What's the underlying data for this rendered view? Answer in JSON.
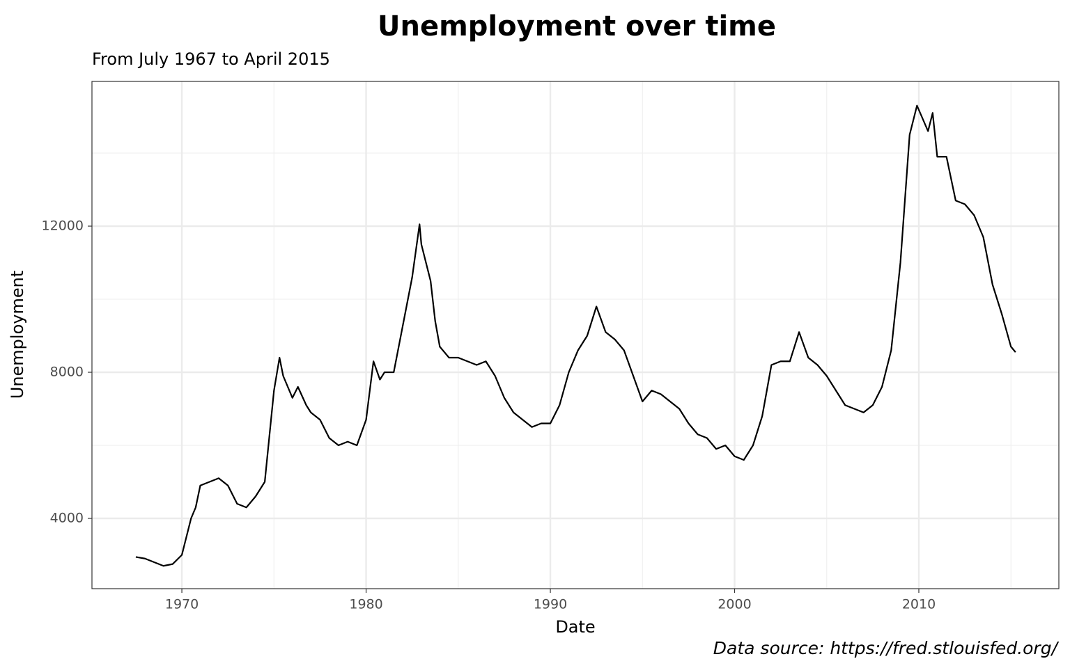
{
  "chart_data": {
    "type": "line",
    "title": "Unemployment over time",
    "subtitle": "From July 1967 to April 2015",
    "caption": "Data source: https://fred.stlouisfed.org/",
    "x_label": "Date",
    "y_label": "Unemployment",
    "color": "#000000",
    "grid": true,
    "xlim": [
      1965.12,
      2017.6
    ],
    "ylim": [
      2076,
      15962
    ],
    "xticks": [
      1970,
      1980,
      1990,
      2000,
      2010
    ],
    "yticks": [
      4000,
      8000,
      12000
    ],
    "minor_xticks": [
      1975,
      1985,
      1995,
      2005,
      2015
    ],
    "minor_yticks": [
      6000,
      10000,
      14000
    ],
    "x": [
      1967.5,
      1968.0,
      1968.5,
      1969.0,
      1969.5,
      1970.0,
      1970.5,
      1970.75,
      1971.0,
      1971.5,
      1972.0,
      1972.5,
      1973.0,
      1973.5,
      1974.0,
      1974.5,
      1975.0,
      1975.3,
      1975.5,
      1976.0,
      1976.3,
      1976.75,
      1977.0,
      1977.5,
      1978.0,
      1978.5,
      1979.0,
      1979.5,
      1980.0,
      1980.4,
      1980.75,
      1981.0,
      1981.5,
      1982.0,
      1982.5,
      1982.9,
      1983.0,
      1983.5,
      1983.75,
      1984.0,
      1984.5,
      1985.0,
      1985.5,
      1986.0,
      1986.5,
      1987.0,
      1987.5,
      1988.0,
      1988.5,
      1989.0,
      1989.5,
      1990.0,
      1990.5,
      1991.0,
      1991.5,
      1992.0,
      1992.5,
      1993.0,
      1993.5,
      1994.0,
      1994.5,
      1995.0,
      1995.5,
      1996.0,
      1996.5,
      1997.0,
      1997.5,
      1998.0,
      1998.5,
      1999.0,
      1999.5,
      2000.0,
      2000.5,
      2001.0,
      2001.5,
      2002.0,
      2002.5,
      2003.0,
      2003.5,
      2004.0,
      2004.5,
      2005.0,
      2005.5,
      2006.0,
      2006.5,
      2007.0,
      2007.5,
      2008.0,
      2008.5,
      2009.0,
      2009.5,
      2009.9,
      2010.5,
      2010.75,
      2011.0,
      2011.5,
      2012.0,
      2012.5,
      2013.0,
      2013.5,
      2014.0,
      2014.5,
      2015.0,
      2015.25
    ],
    "values": [
      2944,
      2900,
      2800,
      2700,
      2750,
      3000,
      4000,
      4300,
      4900,
      5000,
      5100,
      4900,
      4400,
      4300,
      4600,
      5000,
      7500,
      8400,
      7900,
      7300,
      7600,
      7100,
      6900,
      6700,
      6200,
      6000,
      6100,
      6000,
      6700,
      8300,
      7800,
      8000,
      8000,
      9300,
      10600,
      12050,
      11500,
      10500,
      9400,
      8700,
      8400,
      8400,
      8300,
      8200,
      8300,
      7900,
      7300,
      6900,
      6700,
      6500,
      6600,
      6600,
      7100,
      8000,
      8600,
      9000,
      9800,
      9100,
      8900,
      8600,
      7900,
      7200,
      7500,
      7400,
      7200,
      7000,
      6600,
      6300,
      6200,
      5900,
      6000,
      5700,
      5600,
      6000,
      6800,
      8200,
      8300,
      8300,
      9100,
      8400,
      8200,
      7900,
      7500,
      7100,
      7000,
      6900,
      7100,
      7600,
      8600,
      11000,
      14500,
      15300,
      14600,
      15100,
      13900,
      13900,
      12700,
      12600,
      12300,
      11700,
      10400,
      9600,
      8700,
      8550
    ]
  }
}
